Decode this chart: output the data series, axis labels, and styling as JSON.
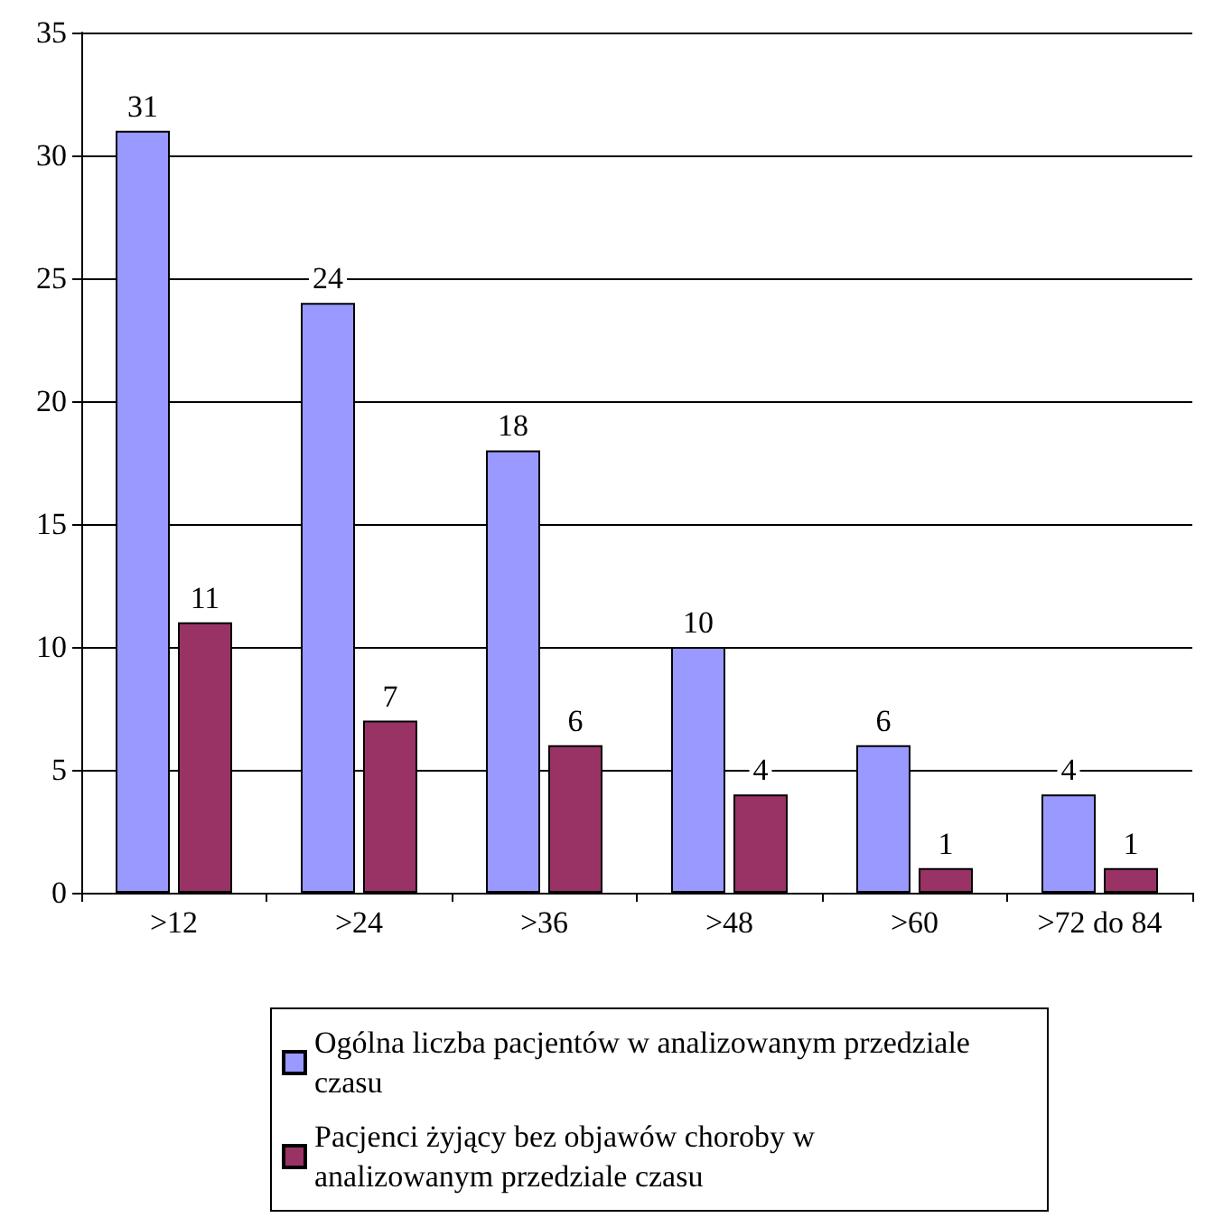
{
  "chart_data": {
    "type": "bar",
    "categories": [
      ">12",
      ">24",
      ">36",
      ">48",
      ">60",
      ">72 do 84"
    ],
    "series": [
      {
        "name": "Ogólna liczba pacjentów w analizowanym przedziale czasu",
        "color": "#9999ff",
        "values": [
          31,
          24,
          18,
          10,
          6,
          4
        ]
      },
      {
        "name": "Pacjenci żyjący bez objawów choroby w analizowanym przedziale czasu",
        "color": "#993366",
        "values": [
          11,
          7,
          6,
          4,
          1,
          1
        ]
      }
    ],
    "ylim": [
      0,
      35
    ],
    "yticks": [
      0,
      5,
      10,
      15,
      20,
      25,
      30,
      35
    ],
    "grid": "y",
    "legend": "bottom",
    "data_labels": true
  }
}
